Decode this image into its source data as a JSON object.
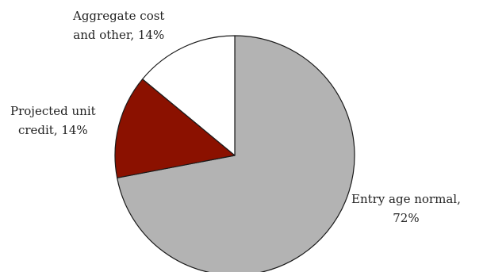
{
  "chart_data": {
    "type": "pie",
    "title": "",
    "start_angle_deg": 0,
    "direction": "clockwise",
    "slices": [
      {
        "name": "Entry age normal",
        "value": 72,
        "label_lines": [
          "Entry age normal,",
          "72%"
        ],
        "color": "#b3b3b3"
      },
      {
        "name": "Projected unit credit",
        "value": 14,
        "label_lines": [
          "Projected unit",
          "credit, 14%"
        ],
        "color": "#8b1100"
      },
      {
        "name": "Aggregate cost and other",
        "value": 14,
        "label_lines": [
          "Aggregate cost",
          "and other, 14%"
        ],
        "color": "#ffffff"
      }
    ]
  }
}
